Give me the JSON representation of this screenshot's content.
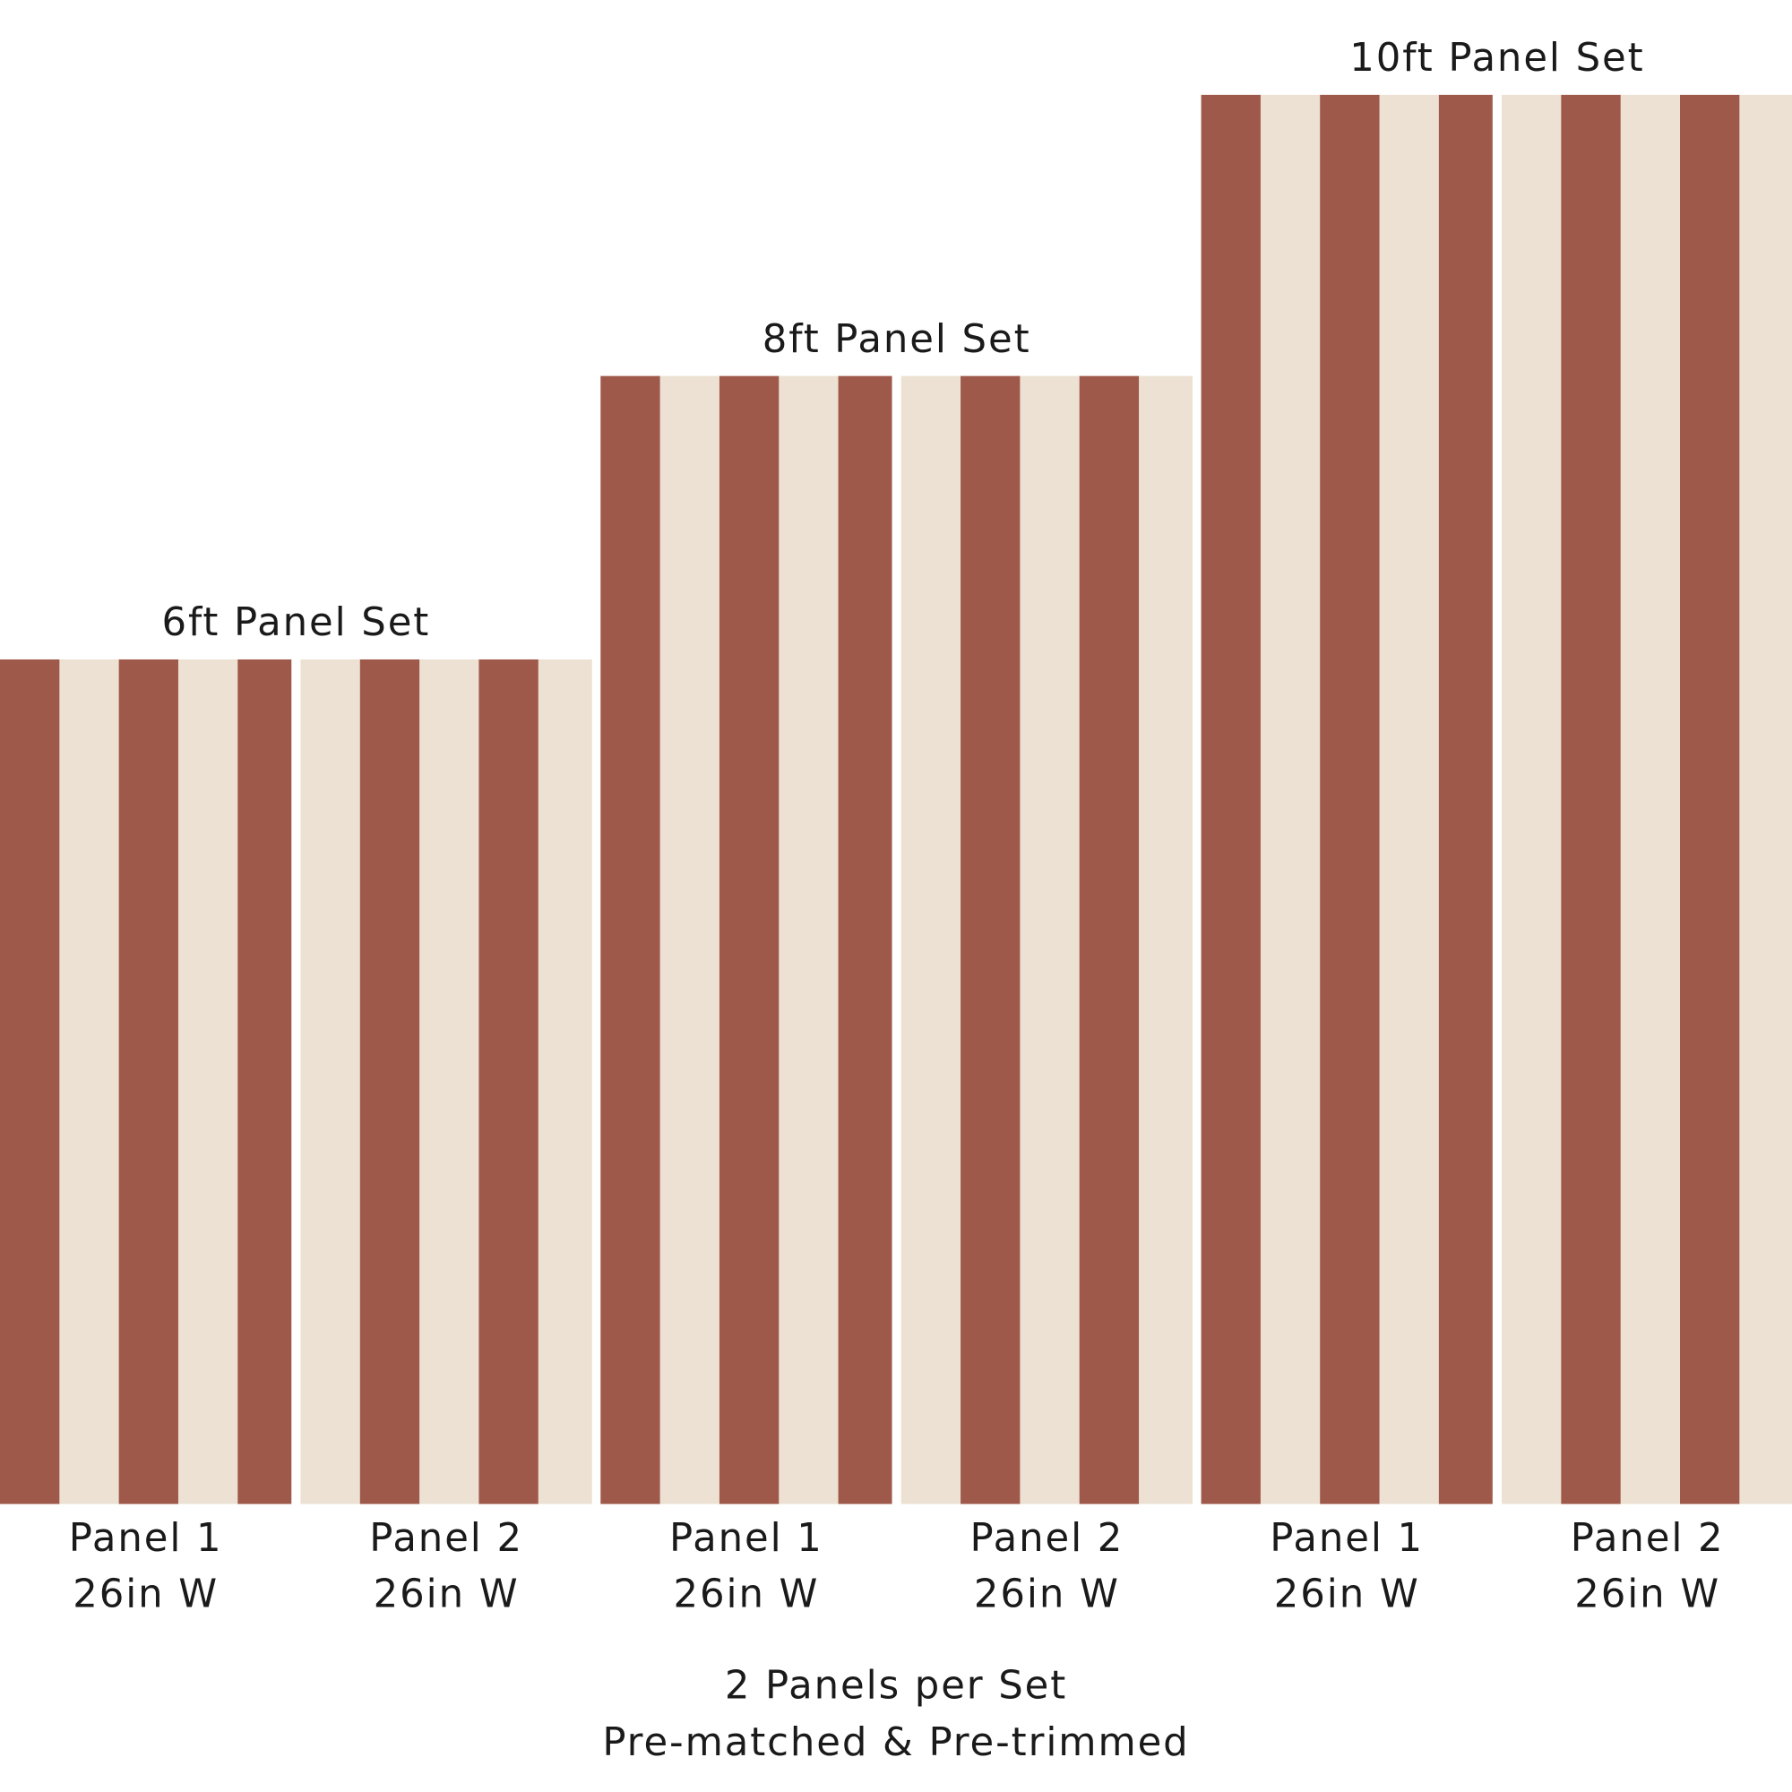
{
  "sets": [
    {
      "title": "6ft Panel Set",
      "panels": [
        {
          "name": "Panel 1",
          "width": "26in W"
        },
        {
          "name": "Panel 2",
          "width": "26in W"
        }
      ]
    },
    {
      "title": "8ft Panel Set",
      "panels": [
        {
          "name": "Panel 1",
          "width": "26in W"
        },
        {
          "name": "Panel 2",
          "width": "26in W"
        }
      ]
    },
    {
      "title": "10ft Panel Set",
      "panels": [
        {
          "name": "Panel 1",
          "width": "26in W"
        },
        {
          "name": "Panel 2",
          "width": "26in W"
        }
      ]
    }
  ],
  "footer": {
    "line1": "2 Panels per Set",
    "line2": "Pre-matched & Pre-trimmed"
  }
}
